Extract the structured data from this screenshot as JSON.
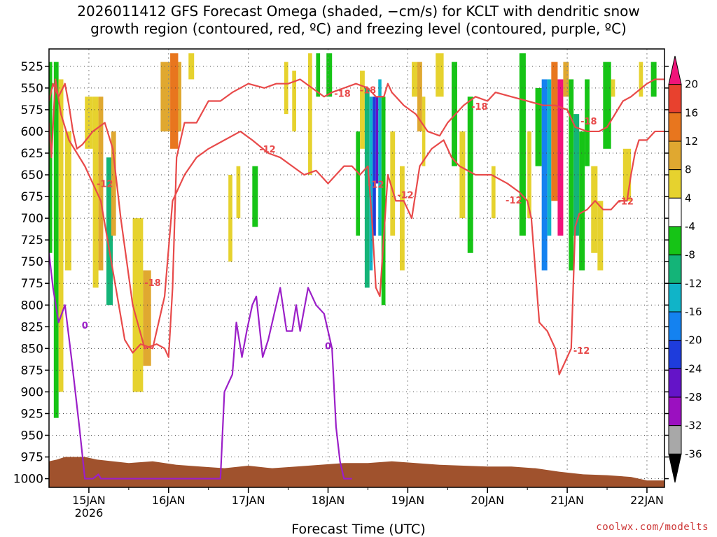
{
  "title": {
    "line1": "2026011412 GFS Forecast Omega (shaded, −cm/s) for KCLT with dendritic snow",
    "line2": "growth region (contoured, red, ºC) and freezing level (contoured, purple, ºC)"
  },
  "credit": "coolwx.com/modelts",
  "colors": {
    "red_contour": "#e84a4a",
    "purple_contour": "#9b1fc8",
    "ground": "#a0522d"
  },
  "chart_data": {
    "type": "heatmap",
    "xlabel": "Forecast Time (UTC)",
    "ylabel": "",
    "x_ticks": [
      {
        "label": "15JAN",
        "sub": "2026",
        "t": 0.5
      },
      {
        "label": "16JAN",
        "sub": "",
        "t": 1.5
      },
      {
        "label": "17JAN",
        "sub": "",
        "t": 2.5
      },
      {
        "label": "18JAN",
        "sub": "",
        "t": 3.5
      },
      {
        "label": "19JAN",
        "sub": "",
        "t": 4.5
      },
      {
        "label": "20JAN",
        "sub": "",
        "t": 5.5
      },
      {
        "label": "21JAN",
        "sub": "",
        "t": 6.5
      },
      {
        "label": "22JAN",
        "sub": "",
        "t": 7.5
      }
    ],
    "xlim": [
      0,
      7.72
    ],
    "y_ticks": [
      525,
      550,
      575,
      600,
      625,
      650,
      675,
      700,
      725,
      750,
      775,
      800,
      825,
      850,
      875,
      900,
      925,
      950,
      975,
      1000
    ],
    "ylim": [
      1010,
      505
    ],
    "colorbar": {
      "labels": [
        "20",
        "16",
        "12",
        "8",
        "4",
        "-4",
        "-8",
        "-12",
        "-16",
        "-20",
        "-24",
        "-28",
        "-32",
        "-36"
      ],
      "colors": [
        "#f0147a",
        "#e8412e",
        "#e8761e",
        "#e0a830",
        "#e6d22e",
        "#ffffff",
        "#16c416",
        "#14b478",
        "#10b4c8",
        "#1482f0",
        "#1e3cdc",
        "#6414c8",
        "#9b10c0",
        "#a8a8a8",
        "#000000"
      ]
    },
    "series": [
      {
        "name": "-18",
        "x": [
          0.0,
          0.05,
          0.12,
          0.2,
          0.25,
          0.3,
          0.35,
          0.42,
          0.55,
          0.7,
          0.8,
          0.9,
          1.05,
          1.2,
          1.35,
          1.45,
          1.5,
          1.55,
          1.6,
          1.7,
          1.85,
          2.0,
          2.15,
          2.3,
          2.5,
          2.7,
          2.85,
          3.0,
          3.15,
          3.3,
          3.45,
          3.55,
          3.7,
          3.85,
          4.0,
          4.1,
          4.2,
          4.25,
          4.3,
          4.35,
          4.45,
          4.6,
          4.75,
          4.9,
          5.0,
          5.1,
          5.2,
          5.35,
          5.5,
          5.6,
          5.8,
          6.0,
          6.2,
          6.35,
          6.5,
          6.6,
          6.75,
          6.9,
          7.0,
          7.1,
          7.2,
          7.3,
          7.5,
          7.6,
          7.72
        ],
        "y": [
          565,
          545,
          560,
          545,
          570,
          600,
          620,
          615,
          600,
          590,
          620,
          700,
          800,
          850,
          845,
          850,
          860,
          780,
          630,
          590,
          590,
          565,
          565,
          555,
          545,
          550,
          545,
          545,
          540,
          550,
          560,
          555,
          550,
          545,
          550,
          560,
          560,
          545,
          555,
          560,
          570,
          580,
          600,
          605,
          590,
          580,
          570,
          560,
          565,
          555,
          560,
          565,
          570,
          570,
          575,
          595,
          600,
          600,
          595,
          580,
          565,
          560,
          545,
          540,
          540
        ]
      },
      {
        "name": "-12",
        "x": [
          0.0,
          0.03,
          0.08,
          0.15,
          0.25,
          0.35,
          0.45,
          0.55,
          0.65,
          0.8,
          0.95,
          1.05,
          1.15,
          1.3,
          1.45,
          1.55,
          1.7,
          1.85,
          2.0,
          2.2,
          2.4,
          2.55,
          2.75,
          2.9,
          3.05,
          3.2,
          3.35,
          3.5,
          3.6,
          3.7,
          3.8,
          3.9,
          4.0,
          4.05,
          4.1,
          4.15,
          4.25,
          4.35,
          4.45,
          4.5,
          4.55,
          4.65,
          4.8,
          4.95,
          5.05,
          5.15,
          5.35,
          5.55,
          5.75,
          5.9,
          6.0,
          6.05,
          6.1,
          6.15,
          6.25,
          6.3,
          6.35,
          6.4,
          6.45,
          6.5,
          6.55,
          6.6,
          6.65,
          6.75,
          6.85,
          6.95,
          7.05,
          7.15,
          7.25,
          7.3,
          7.35,
          7.4,
          7.5,
          7.6,
          7.72
        ],
        "y": [
          590,
          630,
          540,
          580,
          610,
          625,
          640,
          660,
          680,
          760,
          840,
          855,
          845,
          850,
          790,
          680,
          650,
          630,
          620,
          610,
          600,
          610,
          625,
          630,
          640,
          650,
          645,
          660,
          650,
          640,
          640,
          650,
          640,
          700,
          780,
          790,
          650,
          680,
          680,
          690,
          700,
          640,
          620,
          610,
          630,
          640,
          650,
          650,
          660,
          670,
          680,
          700,
          760,
          820,
          830,
          840,
          850,
          880,
          870,
          860,
          850,
          710,
          695,
          690,
          680,
          690,
          690,
          680,
          680,
          650,
          625,
          610,
          610,
          600,
          600
        ]
      },
      {
        "name": "0",
        "x": [
          0.0,
          0.05,
          0.12,
          0.2,
          0.28,
          0.38,
          0.45,
          0.55,
          0.62,
          0.65,
          2.15,
          2.2,
          2.3,
          2.35,
          2.42,
          2.48,
          2.55,
          2.6,
          2.68,
          2.75,
          2.85,
          2.9,
          2.98,
          3.05,
          3.1,
          3.15,
          3.25,
          3.3,
          3.35,
          3.45,
          3.55,
          3.6,
          3.65,
          3.7,
          3.75,
          3.8
        ],
        "y": [
          740,
          780,
          820,
          800,
          860,
          940,
          1000,
          1000,
          995,
          1000,
          1000,
          900,
          880,
          820,
          860,
          830,
          800,
          790,
          860,
          840,
          800,
          780,
          830,
          830,
          800,
          830,
          780,
          790,
          800,
          810,
          850,
          940,
          980,
          1000,
          1000,
          1000
        ]
      }
    ],
    "contour_labels": [
      {
        "text": "-18",
        "t": 3.68,
        "p": 556
      },
      {
        "text": "-18",
        "t": 4.0,
        "p": 552
      },
      {
        "text": "-18",
        "t": 5.4,
        "p": 571
      },
      {
        "text": "-18",
        "t": 6.77,
        "p": 588
      },
      {
        "text": "-18",
        "t": 1.3,
        "p": 774
      },
      {
        "text": "-12",
        "t": 0.7,
        "p": 660
      },
      {
        "text": "-12",
        "t": 2.74,
        "p": 620
      },
      {
        "text": "-12",
        "t": 4.1,
        "p": 661
      },
      {
        "text": "-12",
        "t": 4.47,
        "p": 673
      },
      {
        "text": "-12",
        "t": 5.83,
        "p": 679
      },
      {
        "text": "-12",
        "t": 6.68,
        "p": 852
      },
      {
        "text": "-12",
        "t": 7.23,
        "p": 680
      },
      {
        "text": "0",
        "t": 0.45,
        "p": 823
      },
      {
        "text": "0",
        "t": 3.5,
        "p": 847
      }
    ]
  }
}
